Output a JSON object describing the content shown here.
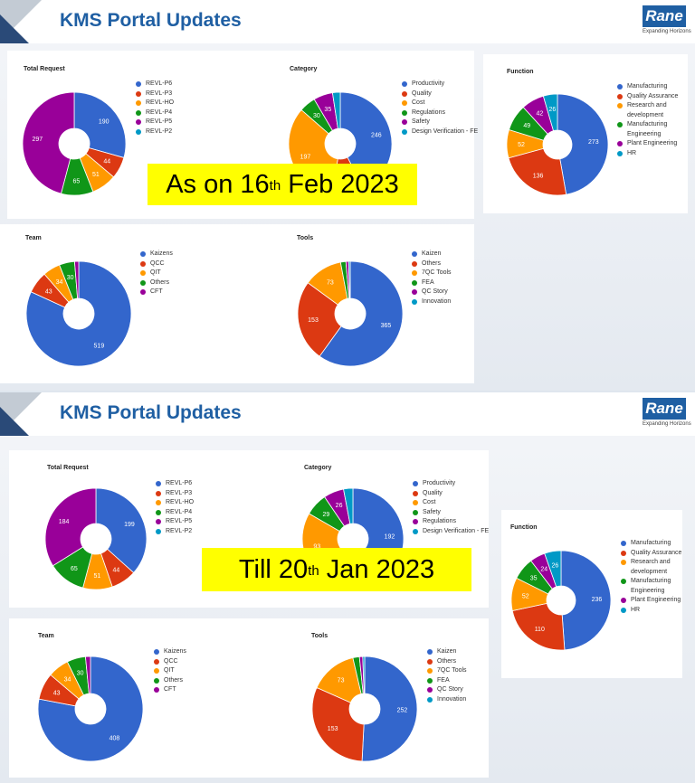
{
  "colors": {
    "blue": "#3366cc",
    "red": "#dc3912",
    "orange": "#ff9900",
    "green": "#109618",
    "purple": "#990099",
    "teal": "#0099c6"
  },
  "slides": [
    {
      "title": "KMS Portal Updates",
      "logo": {
        "name": "Rane",
        "tagline": "Expanding Horizons"
      },
      "banner": {
        "pre": "As on 16",
        "sup": "th",
        "post": " Feb 2023"
      },
      "charts": [
        {
          "title": "Total Request",
          "legend": [
            "REVL-P6",
            "REVL-P3",
            "REVL-HO",
            "REVL-P4",
            "REVL-P5",
            "REVL-P2"
          ],
          "values": [
            190,
            44,
            51,
            65,
            297,
            0
          ],
          "colors": [
            "#3366cc",
            "#dc3912",
            "#ff9900",
            "#109618",
            "#990099",
            "#0099c6"
          ]
        },
        {
          "title": "Category",
          "legend": [
            "Productivity",
            "Quality",
            "Cost",
            "Regulations",
            "Safety",
            "Design Verification - FE"
          ],
          "values": [
            246,
            60,
            197,
            30,
            35,
            14
          ],
          "labels": [
            "246",
            "",
            "197",
            "30",
            "35",
            ""
          ],
          "colors": [
            "#3366cc",
            "#dc3912",
            "#ff9900",
            "#109618",
            "#990099",
            "#0099c6"
          ]
        },
        {
          "title": "Function",
          "legend": [
            "Manufacturing",
            "Quality Assurance",
            "Research and development",
            "Manufacturing Engineering",
            "Plant Engineering",
            "HR"
          ],
          "values": [
            273,
            136,
            52,
            49,
            42,
            26
          ],
          "colors": [
            "#3366cc",
            "#dc3912",
            "#ff9900",
            "#109618",
            "#990099",
            "#0099c6"
          ]
        },
        {
          "title": "Team",
          "legend": [
            "Kaizens",
            "QCC",
            "QIT",
            "Others",
            "CFT"
          ],
          "values": [
            519,
            43,
            34,
            30,
            8
          ],
          "labels": [
            "519",
            "43",
            "34",
            "30",
            ""
          ],
          "colors": [
            "#3366cc",
            "#dc3912",
            "#ff9900",
            "#109618",
            "#990099"
          ]
        },
        {
          "title": "Tools",
          "legend": [
            "Kaizen",
            "Others",
            "7QC Tools",
            "FEA",
            "QC Story",
            "Innovation"
          ],
          "values": [
            365,
            153,
            73,
            10,
            5,
            3
          ],
          "labels": [
            "365",
            "153",
            "73",
            "",
            "",
            ""
          ],
          "colors": [
            "#3366cc",
            "#dc3912",
            "#ff9900",
            "#109618",
            "#990099",
            "#0099c6"
          ]
        }
      ]
    },
    {
      "title": "KMS Portal Updates",
      "logo": {
        "name": "Rane",
        "tagline": "Expanding Horizons"
      },
      "banner": {
        "pre": "Till 20",
        "sup": "th",
        "post": " Jan 2023"
      },
      "charts": [
        {
          "title": "Total Request",
          "legend": [
            "REVL-P6",
            "REVL-P3",
            "REVL-HO",
            "REVL-P4",
            "REVL-P5",
            "REVL-P2"
          ],
          "values": [
            199,
            44,
            51,
            65,
            184,
            0
          ],
          "colors": [
            "#3366cc",
            "#dc3912",
            "#ff9900",
            "#109618",
            "#990099",
            "#0099c6"
          ]
        },
        {
          "title": "Category",
          "legend": [
            "Productivity",
            "Quality",
            "Cost",
            "Safety",
            "Regulations",
            "Design Verification - FE"
          ],
          "values": [
            192,
            50,
            93,
            29,
            26,
            12
          ],
          "labels": [
            "192",
            "",
            "93",
            "29",
            "26",
            ""
          ],
          "colors": [
            "#3366cc",
            "#dc3912",
            "#ff9900",
            "#109618",
            "#990099",
            "#0099c6"
          ]
        },
        {
          "title": "Function",
          "legend": [
            "Manufacturing",
            "Quality Assurance",
            "Research and development",
            "Manufacturing Engineering",
            "Plant Engineering",
            "HR"
          ],
          "values": [
            236,
            110,
            52,
            35,
            24,
            26
          ],
          "colors": [
            "#3366cc",
            "#dc3912",
            "#ff9900",
            "#109618",
            "#990099",
            "#0099c6"
          ]
        },
        {
          "title": "Team",
          "legend": [
            "Kaizens",
            "QCC",
            "QIT",
            "Others",
            "CFT"
          ],
          "values": [
            408,
            43,
            34,
            30,
            8
          ],
          "labels": [
            "408",
            "43",
            "34",
            "30",
            ""
          ],
          "colors": [
            "#3366cc",
            "#dc3912",
            "#ff9900",
            "#109618",
            "#990099"
          ]
        },
        {
          "title": "Tools",
          "legend": [
            "Kaizen",
            "Others",
            "7QC Tools",
            "FEA",
            "QC Story",
            "Innovation"
          ],
          "values": [
            252,
            153,
            73,
            10,
            5,
            3
          ],
          "labels": [
            "252",
            "153",
            "73",
            "",
            "",
            ""
          ],
          "colors": [
            "#3366cc",
            "#dc3912",
            "#ff9900",
            "#109618",
            "#990099",
            "#0099c6"
          ]
        }
      ]
    }
  ],
  "chart_data": [
    {
      "type": "pie",
      "title": "Total Request",
      "categories": [
        "REVL-P6",
        "REVL-P3",
        "REVL-HO",
        "REVL-P4",
        "REVL-P5",
        "REVL-P2"
      ],
      "values": [
        190,
        44,
        51,
        65,
        297,
        0
      ]
    },
    {
      "type": "pie",
      "title": "Category",
      "categories": [
        "Productivity",
        "Quality",
        "Cost",
        "Regulations",
        "Safety",
        "Design Verification - FE"
      ],
      "values": [
        246,
        null,
        197,
        30,
        35,
        null
      ]
    },
    {
      "type": "pie",
      "title": "Function",
      "categories": [
        "Manufacturing",
        "Quality Assurance",
        "Research and development",
        "Manufacturing Engineering",
        "Plant Engineering",
        "HR"
      ],
      "values": [
        273,
        136,
        52,
        49,
        42,
        26
      ]
    },
    {
      "type": "pie",
      "title": "Team",
      "categories": [
        "Kaizens",
        "QCC",
        "QIT",
        "Others",
        "CFT"
      ],
      "values": [
        519,
        43,
        34,
        30,
        null
      ]
    },
    {
      "type": "pie",
      "title": "Tools",
      "categories": [
        "Kaizen",
        "Others",
        "7QC Tools",
        "FEA",
        "QC Story",
        "Innovation"
      ],
      "values": [
        365,
        153,
        73,
        null,
        null,
        null
      ]
    },
    {
      "type": "pie",
      "title": "Total Request",
      "categories": [
        "REVL-P6",
        "REVL-P3",
        "REVL-HO",
        "REVL-P4",
        "REVL-P5",
        "REVL-P2"
      ],
      "values": [
        199,
        44,
        51,
        65,
        184,
        0
      ]
    },
    {
      "type": "pie",
      "title": "Category",
      "categories": [
        "Productivity",
        "Quality",
        "Cost",
        "Safety",
        "Regulations",
        "Design Verification - FE"
      ],
      "values": [
        192,
        null,
        93,
        29,
        26,
        null
      ]
    },
    {
      "type": "pie",
      "title": "Function",
      "categories": [
        "Manufacturing",
        "Quality Assurance",
        "Research and development",
        "Manufacturing Engineering",
        "Plant Engineering",
        "HR"
      ],
      "values": [
        236,
        110,
        52,
        35,
        24,
        26
      ]
    },
    {
      "type": "pie",
      "title": "Team",
      "categories": [
        "Kaizens",
        "QCC",
        "QIT",
        "Others",
        "CFT"
      ],
      "values": [
        408,
        43,
        34,
        30,
        null
      ]
    },
    {
      "type": "pie",
      "title": "Tools",
      "categories": [
        "Kaizen",
        "Others",
        "7QC Tools",
        "FEA",
        "QC Story",
        "Innovation"
      ],
      "values": [
        252,
        153,
        73,
        null,
        null,
        null
      ]
    }
  ]
}
